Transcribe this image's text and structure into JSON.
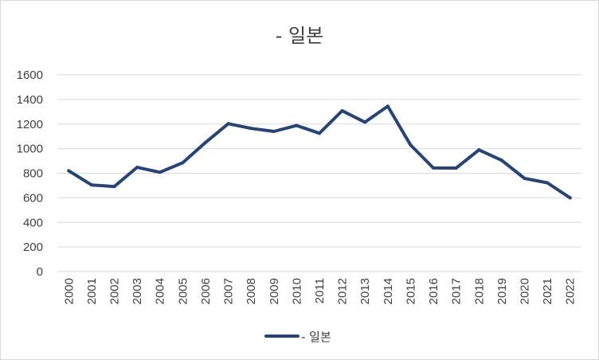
{
  "chart_data": {
    "type": "line",
    "title": "- 일본",
    "xlabel": "",
    "ylabel": "",
    "ylim": [
      0,
      1600
    ],
    "ytick_step": 200,
    "grid": "horizontal",
    "legend_position": "bottom",
    "categories": [
      "2000",
      "2001",
      "2002",
      "2003",
      "2004",
      "2005",
      "2006",
      "2007",
      "2008",
      "2009",
      "2010",
      "2011",
      "2012",
      "2013",
      "2014",
      "2015",
      "2016",
      "2017",
      "2018",
      "2019",
      "2020",
      "2021",
      "2022"
    ],
    "y_ticks": [
      "0",
      "200",
      "400",
      "600",
      "800",
      "1000",
      "1200",
      "1400",
      "1600"
    ],
    "series": [
      {
        "name": "- 일본",
        "color": "#264478",
        "values": [
          820,
          705,
          692,
          848,
          808,
          885,
          1050,
          1203,
          1165,
          1140,
          1188,
          1125,
          1308,
          1215,
          1345,
          1030,
          843,
          842,
          990,
          905,
          758,
          722,
          600
        ]
      }
    ]
  }
}
